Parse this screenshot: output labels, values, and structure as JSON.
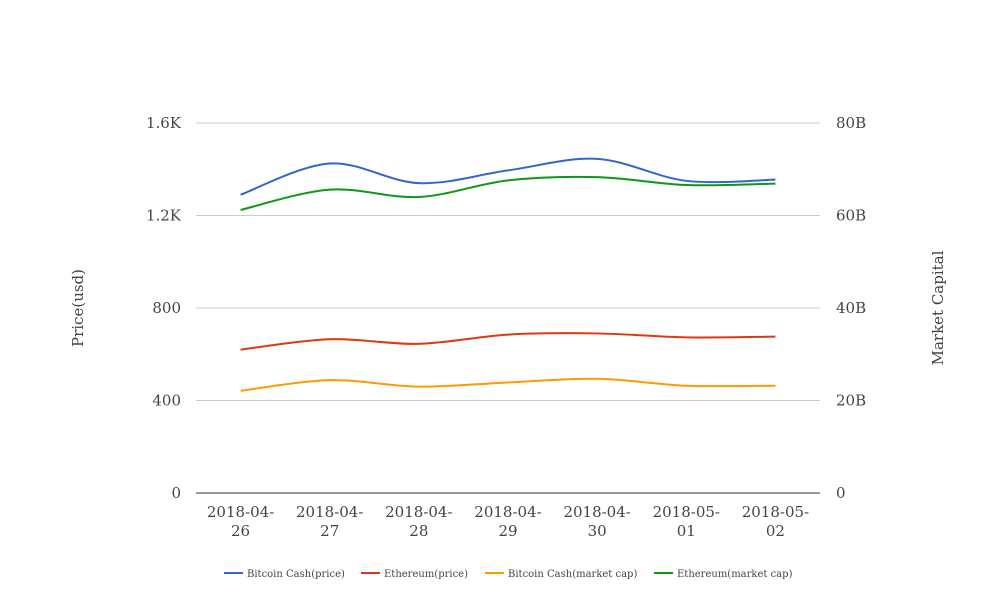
{
  "chart_data": {
    "type": "line",
    "x": [
      "2018-04-26",
      "2018-04-27",
      "2018-04-28",
      "2018-04-29",
      "2018-04-30",
      "2018-05-01",
      "2018-05-02"
    ],
    "x_tick_labels": [
      [
        "2018-04-",
        "26"
      ],
      [
        "2018-04-",
        "27"
      ],
      [
        "2018-04-",
        "28"
      ],
      [
        "2018-04-",
        "29"
      ],
      [
        "2018-04-",
        "30"
      ],
      [
        "2018-05-",
        "01"
      ],
      [
        "2018-05-",
        "02"
      ]
    ],
    "ylabel_left": "Price(usd)",
    "ylabel_right": "Market Capital",
    "ylim_left": [
      0,
      1600
    ],
    "ylim_right": [
      0,
      80000000000
    ],
    "yticks_left": [
      0,
      400,
      800,
      1200,
      1600
    ],
    "yticks_left_labels": [
      "0",
      "400",
      "800",
      "1.2K",
      "1.6K"
    ],
    "yticks_right_labels": [
      "0",
      "20B",
      "40B",
      "60B",
      "80B"
    ],
    "grid": true,
    "legend_position": "bottom",
    "smooth": true,
    "series": [
      {
        "name": "Bitcoin Cash(price)",
        "axis": "left",
        "color": "#3366cc",
        "values": [
          1290,
          1425,
          1340,
          1395,
          1445,
          1350,
          1355
        ]
      },
      {
        "name": "Ethereum(price)",
        "axis": "left",
        "color": "#dc3912",
        "values": [
          620,
          665,
          645,
          685,
          690,
          673,
          676
        ]
      },
      {
        "name": "Bitcoin Cash(market cap)",
        "axis": "right",
        "color": "#ff9900",
        "values": [
          22100000000,
          24400000000,
          23000000000,
          23900000000,
          24700000000,
          23200000000,
          23200000000
        ]
      },
      {
        "name": "Ethereum(market cap)",
        "axis": "right",
        "color": "#109618",
        "values": [
          61200000000,
          65600000000,
          64000000000,
          67600000000,
          68300000000,
          66600000000,
          66900000000
        ]
      }
    ]
  }
}
